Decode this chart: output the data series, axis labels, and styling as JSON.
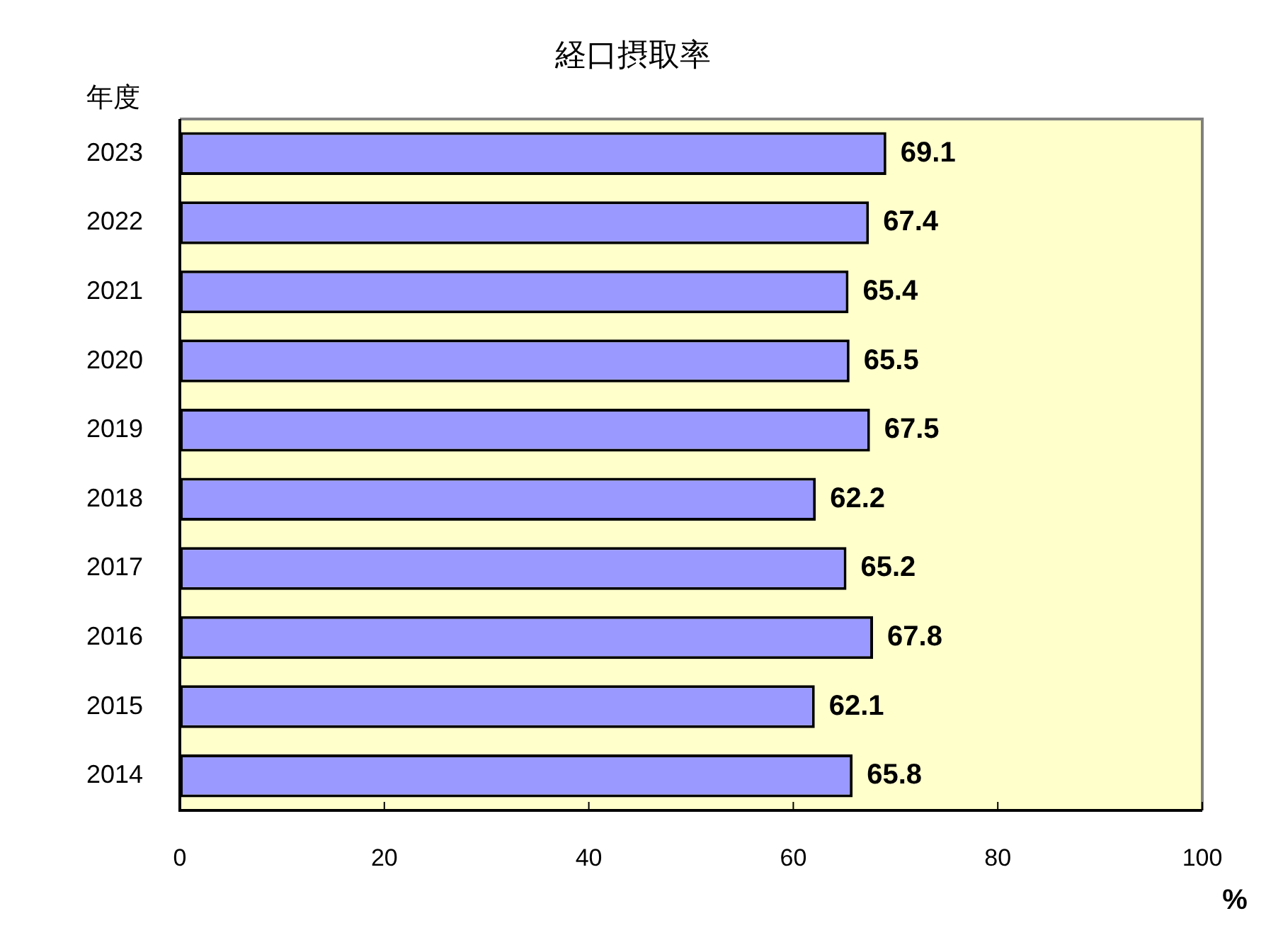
{
  "chart_data": {
    "type": "bar",
    "title": "経口摂取率",
    "ylabel": "年度",
    "xlabel": "%",
    "orientation": "horizontal",
    "categories": [
      "2023",
      "2022",
      "2021",
      "2020",
      "2019",
      "2018",
      "2017",
      "2016",
      "2015",
      "2014"
    ],
    "values": [
      69.1,
      67.4,
      65.4,
      65.5,
      67.5,
      62.2,
      65.2,
      67.8,
      62.1,
      65.8
    ],
    "color": "#9999ff",
    "xlim": [
      0,
      100
    ],
    "xticks": [
      0,
      20,
      40,
      60,
      80,
      100
    ],
    "data_labels": true
  }
}
